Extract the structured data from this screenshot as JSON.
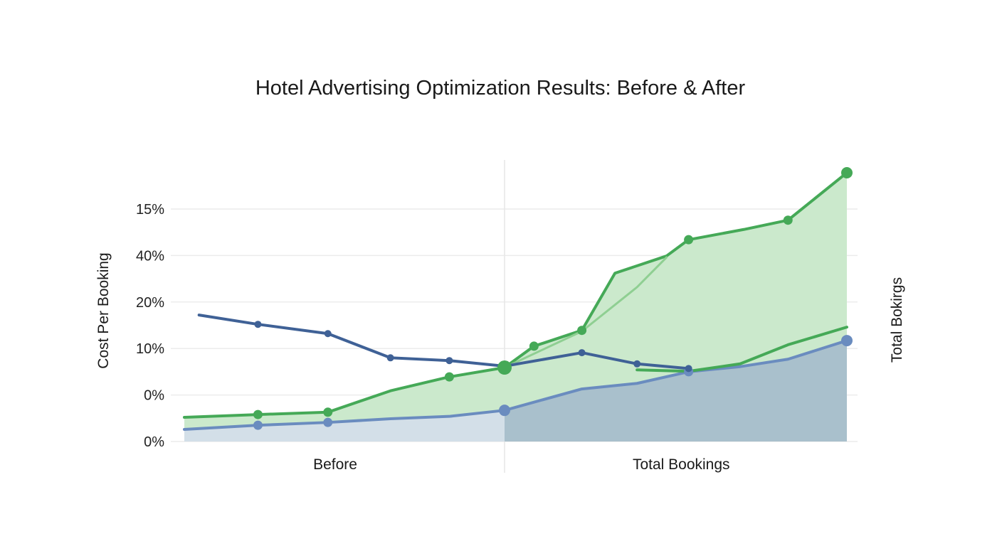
{
  "chart_data": {
    "type": "area",
    "title": "Hotel Advertising Optimization Results: Before & After",
    "ylabel_left": "Cost Per Booking",
    "ylabel_right": "Total Bokirgs",
    "x_category_labels": [
      {
        "label": "Before",
        "x": 4.1
      },
      {
        "label": "Total Bookings",
        "x": 13.5
      }
    ],
    "divider_x": 8.7,
    "xlim": [
      0,
      18
    ],
    "ylim": [
      0,
      5.9
    ],
    "yticks": [
      {
        "value": 0,
        "label": "0%"
      },
      {
        "value": 1,
        "label": "0%"
      },
      {
        "value": 2,
        "label": "10%"
      },
      {
        "value": 3,
        "label": "20%"
      },
      {
        "value": 4,
        "label": "40%"
      },
      {
        "value": 5,
        "label": "15%"
      }
    ],
    "grid": true,
    "colors": {
      "blue_dark": "#3f6196",
      "blue_light": "#6a8cbf",
      "blue_fill_before": "#d3dfe8",
      "blue_fill_after": "#a9c0cc",
      "green": "#45a957",
      "green_light": "#8fcf92",
      "green_fill": "#cbe9cc"
    },
    "series": [
      {
        "id": "green-upper",
        "color": "#45a957",
        "fill": true,
        "points": [
          [
            0,
            0.52
          ],
          [
            2.0,
            0.58
          ],
          [
            3.9,
            0.63
          ],
          [
            5.6,
            1.09
          ],
          [
            7.2,
            1.39
          ],
          [
            8.7,
            1.59
          ],
          [
            9.5,
            2.05
          ],
          [
            10.8,
            2.39
          ],
          [
            11.7,
            3.62
          ],
          [
            13.1,
            3.99
          ],
          [
            13.7,
            4.34
          ],
          [
            15.2,
            4.56
          ],
          [
            16.4,
            4.76
          ],
          [
            18.0,
            5.78
          ]
        ],
        "markers": [
          2.0,
          3.9,
          7.2,
          8.7,
          9.5,
          10.8,
          13.7,
          16.4,
          18.0
        ]
      },
      {
        "id": "green-faint",
        "color": "#8fcf92",
        "fill": false,
        "points": [
          [
            8.7,
            1.59
          ],
          [
            10.8,
            2.37
          ],
          [
            12.3,
            3.32
          ],
          [
            13.1,
            3.96
          ]
        ],
        "markers": []
      },
      {
        "id": "blue-lower",
        "color": "#6a8cbf",
        "fill": true,
        "points": [
          [
            0,
            0.26
          ],
          [
            2.0,
            0.35
          ],
          [
            3.9,
            0.41
          ],
          [
            5.6,
            0.49
          ],
          [
            7.2,
            0.54
          ],
          [
            8.7,
            0.67
          ],
          [
            10.8,
            1.13
          ],
          [
            12.3,
            1.25
          ],
          [
            13.7,
            1.5
          ],
          [
            15.1,
            1.61
          ],
          [
            16.4,
            1.77
          ],
          [
            18.0,
            2.17
          ]
        ],
        "markers": [
          2.0,
          3.9,
          8.7,
          13.7,
          18.0
        ]
      },
      {
        "id": "green-lower",
        "color": "#45a957",
        "fill": false,
        "points": [
          [
            12.3,
            1.54
          ],
          [
            13.7,
            1.51
          ],
          [
            15.1,
            1.67
          ],
          [
            16.4,
            2.08
          ],
          [
            18.0,
            2.46
          ]
        ],
        "markers": []
      },
      {
        "id": "blue-cost",
        "color": "#3f6196",
        "fill": false,
        "points": [
          [
            0.4,
            2.72
          ],
          [
            2.0,
            2.52
          ],
          [
            3.9,
            2.32
          ],
          [
            5.6,
            1.8
          ],
          [
            7.2,
            1.74
          ],
          [
            8.7,
            1.62
          ],
          [
            10.8,
            1.91
          ],
          [
            12.3,
            1.67
          ],
          [
            13.7,
            1.57
          ]
        ],
        "markers": [
          2.0,
          3.9,
          5.6,
          7.2,
          10.8,
          12.3,
          13.7
        ]
      }
    ]
  }
}
